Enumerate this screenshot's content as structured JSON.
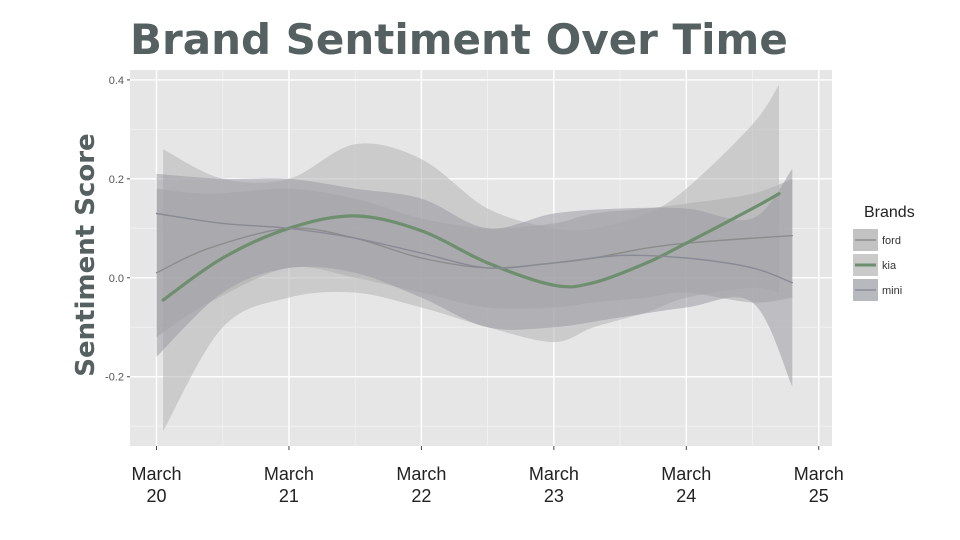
{
  "chart_data": {
    "type": "line",
    "title": "Brand Sentiment Over Time",
    "xlabel": "",
    "ylabel": "Sentiment Score",
    "x_tick_labels": [
      [
        "March",
        "20"
      ],
      [
        "March",
        "21"
      ],
      [
        "March",
        "22"
      ],
      [
        "March",
        "23"
      ],
      [
        "March",
        "24"
      ],
      [
        "March",
        "25"
      ]
    ],
    "x_ticks": [
      20,
      21,
      22,
      23,
      24,
      25
    ],
    "xlim": [
      19.8,
      25.1
    ],
    "y_ticks": [
      -0.2,
      0.0,
      0.2,
      0.4
    ],
    "y_tick_labels": [
      "-0.2",
      "0.0",
      "0.2",
      "0.4"
    ],
    "ylim": [
      -0.34,
      0.42
    ],
    "grid": true,
    "legend": {
      "title": "Brands",
      "position": "right"
    },
    "series": [
      {
        "name": "ford",
        "color": "#8c8c8c",
        "band_color": "#a8a8a8",
        "x": [
          20.0,
          20.4,
          21.0,
          21.5,
          22.0,
          22.5,
          23.0,
          23.3,
          23.7,
          24.0,
          24.5,
          24.8
        ],
        "y": [
          0.01,
          0.06,
          0.1,
          0.08,
          0.04,
          0.02,
          0.03,
          0.04,
          0.06,
          0.07,
          0.08,
          0.085
        ],
        "lower": [
          -0.12,
          -0.05,
          0.02,
          0.0,
          -0.03,
          -0.06,
          -0.06,
          -0.05,
          -0.04,
          -0.03,
          -0.05,
          -0.04
        ],
        "upper": [
          0.18,
          0.17,
          0.18,
          0.16,
          0.12,
          0.1,
          0.11,
          0.13,
          0.14,
          0.15,
          0.17,
          0.2
        ]
      },
      {
        "name": "kia",
        "color": "#6e8f6e",
        "band_color": "#b4b4b4",
        "x": [
          20.05,
          20.5,
          21.0,
          21.5,
          22.0,
          22.5,
          23.0,
          23.3,
          23.7,
          24.0,
          24.5,
          24.7
        ],
        "y": [
          -0.045,
          0.04,
          0.1,
          0.125,
          0.095,
          0.03,
          -0.015,
          -0.01,
          0.03,
          0.07,
          0.14,
          0.17
        ],
        "lower": [
          -0.31,
          -0.1,
          -0.04,
          -0.03,
          -0.06,
          -0.1,
          -0.13,
          -0.1,
          -0.07,
          -0.04,
          -0.02,
          -0.03
        ],
        "upper": [
          0.26,
          0.2,
          0.2,
          0.27,
          0.24,
          0.14,
          0.1,
          0.1,
          0.13,
          0.18,
          0.31,
          0.39
        ]
      },
      {
        "name": "mini",
        "color": "#8a8a96",
        "band_color": "#9a9aa4",
        "x": [
          20.0,
          20.5,
          21.0,
          21.5,
          22.0,
          22.5,
          23.0,
          23.5,
          24.0,
          24.5,
          24.8
        ],
        "y": [
          0.13,
          0.11,
          0.1,
          0.08,
          0.05,
          0.02,
          0.03,
          0.045,
          0.04,
          0.02,
          -0.01
        ],
        "lower": [
          -0.16,
          -0.03,
          0.02,
          0.01,
          -0.04,
          -0.1,
          -0.1,
          -0.08,
          -0.06,
          -0.05,
          -0.22
        ],
        "upper": [
          0.21,
          0.2,
          0.2,
          0.18,
          0.16,
          0.1,
          0.13,
          0.14,
          0.14,
          0.12,
          0.22
        ]
      }
    ]
  }
}
